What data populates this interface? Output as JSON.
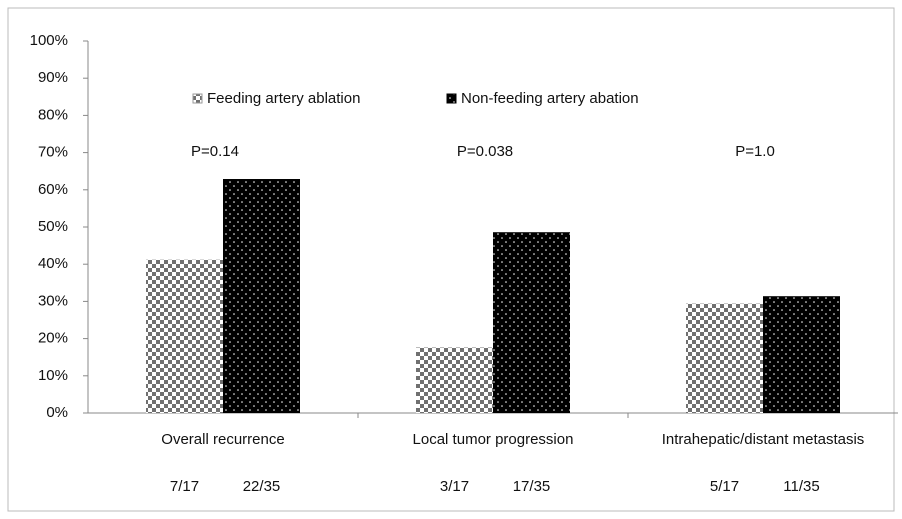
{
  "chart_data": {
    "type": "bar",
    "categories": [
      "Overall recurrence",
      "Local tumor progression",
      "Intrahepatic/distant metastasis"
    ],
    "series": [
      {
        "name": "Feeding artery ablation",
        "color": "#707070",
        "pattern": "checker",
        "values": [
          41.2,
          17.6,
          29.4
        ],
        "counts": [
          "7/17",
          "3/17",
          "5/17"
        ]
      },
      {
        "name": "Non-feeding artery abation",
        "color": "#000000",
        "pattern": "dots",
        "values": [
          62.9,
          48.6,
          31.4
        ],
        "counts": [
          "22/35",
          "17/35",
          "11/35"
        ]
      }
    ],
    "p_values": [
      "P=0.14",
      "P=0.038",
      "P=1.0"
    ],
    "ylim": [
      0,
      100
    ],
    "yticks": [
      {
        "value": 0,
        "label": "0%"
      },
      {
        "value": 10,
        "label": "10%"
      },
      {
        "value": 20,
        "label": "20%"
      },
      {
        "value": 30,
        "label": "30%"
      },
      {
        "value": 40,
        "label": "40%"
      },
      {
        "value": 50,
        "label": "50%"
      },
      {
        "value": 60,
        "label": "60%"
      },
      {
        "value": 70,
        "label": "70%"
      },
      {
        "value": 80,
        "label": "80%"
      },
      {
        "value": 90,
        "label": "90%"
      },
      {
        "value": 100,
        "label": "100%"
      }
    ],
    "grid": false,
    "legend": "top"
  }
}
